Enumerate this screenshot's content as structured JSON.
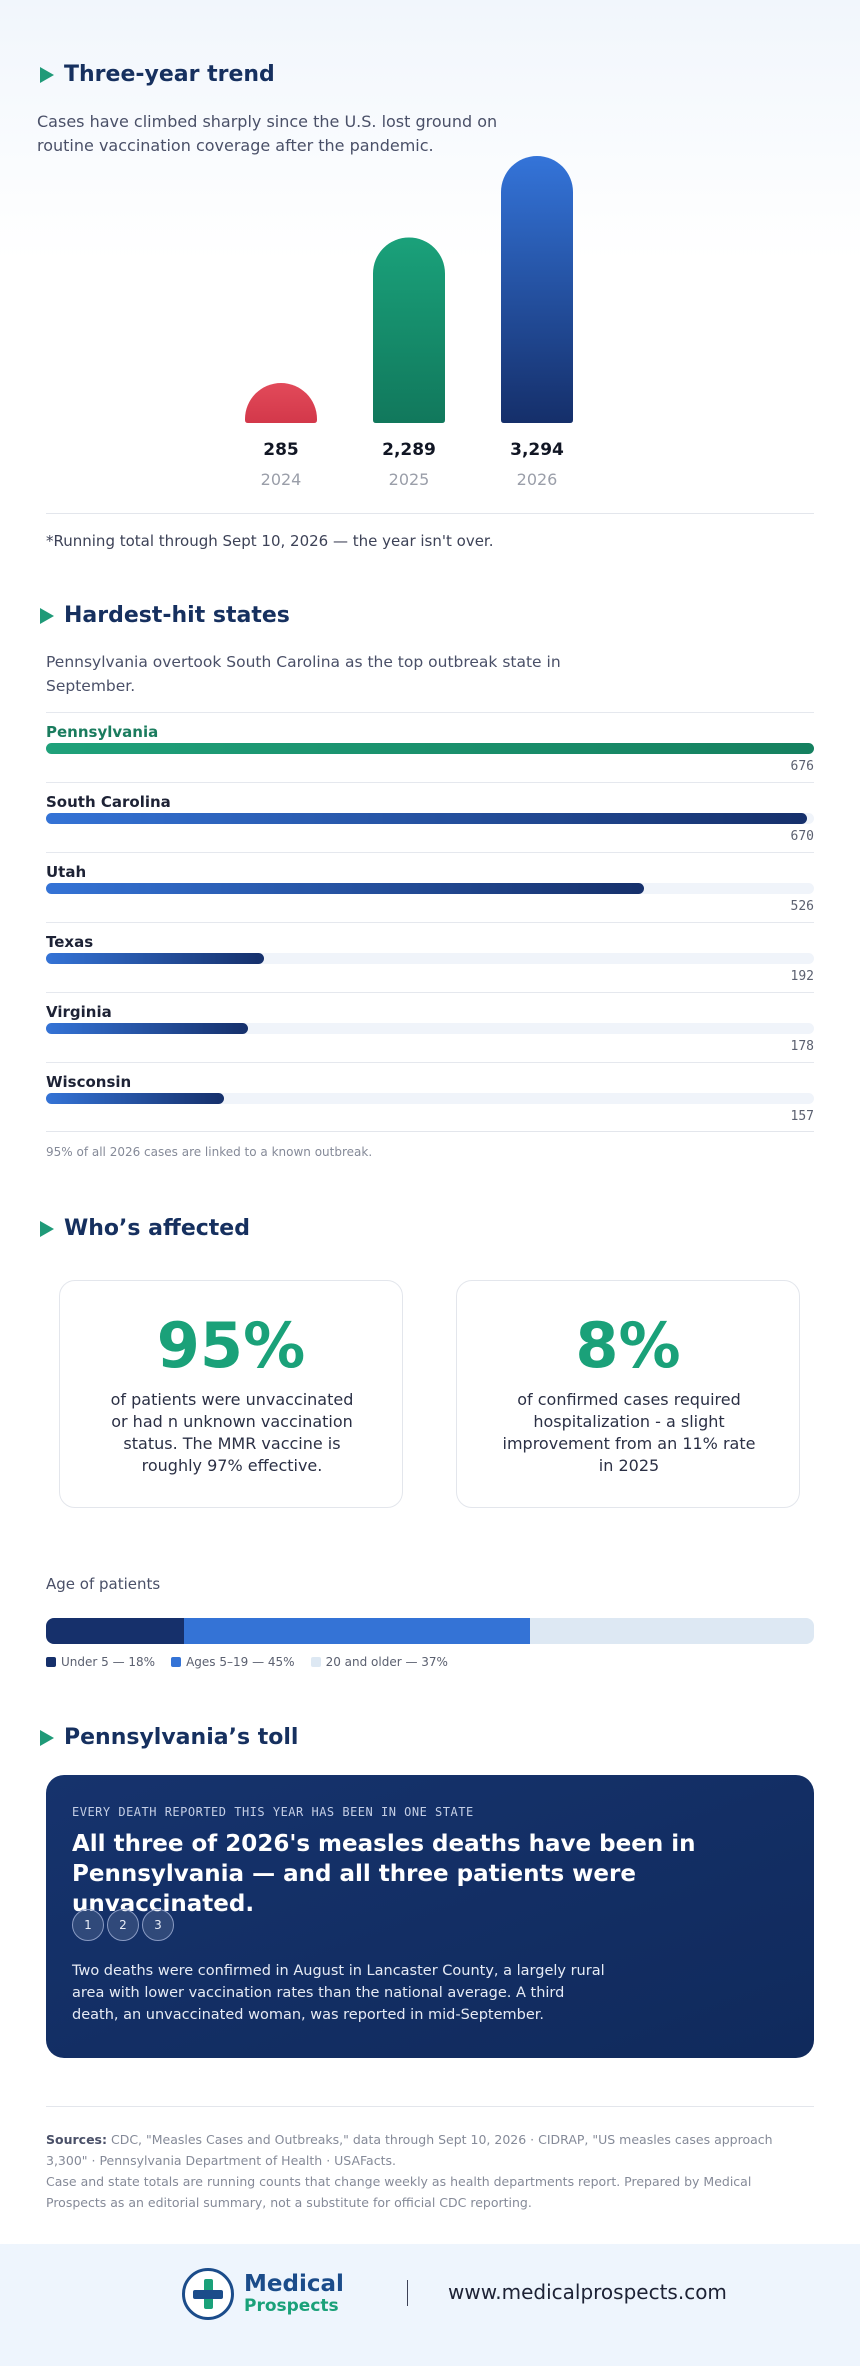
{
  "trend": {
    "heading": "Three-year trend",
    "lede": "Cases have climbed sharply since the U.S. lost ground on routine vaccination coverage after the pandemic.",
    "note": "*Running total through Sept 10, 2026 — the year isn't over."
  },
  "chart_data": {
    "type": "bar",
    "title": "",
    "categories": [
      "2024",
      "2025",
      "2026"
    ],
    "values": [
      285,
      2289,
      3294
    ],
    "value_labels": [
      "285",
      "2,289",
      "3,294"
    ],
    "colors": [
      "#e04656",
      "#16956f",
      "#2c65cf"
    ],
    "xlabel": "",
    "ylabel": "",
    "ylim": [
      0,
      3294
    ],
    "grid": false
  },
  "states": {
    "heading": "Hardest-hit states",
    "lede": "Pennsylvania overtook South Carolina as the top outbreak state in September.",
    "max": 676,
    "rows": [
      {
        "name": "Pennsylvania",
        "value": 676,
        "label": "676"
      },
      {
        "name": "South Carolina",
        "value": 670,
        "label": "670"
      },
      {
        "name": "Utah",
        "value": 526,
        "label": "526"
      },
      {
        "name": "Texas",
        "value": 192,
        "label": "192"
      },
      {
        "name": "Virginia",
        "value": 178,
        "label": "178"
      },
      {
        "name": "Wisconsin",
        "value": 157,
        "label": "157"
      }
    ],
    "footnote": "95% of all 2026 cases are linked to a known outbreak."
  },
  "affected": {
    "heading": "Who’s affected",
    "card1": {
      "big": "95%",
      "text": "of patients were unvaccinated or had n unknown vaccination status. The MMR vaccine is roughly 97% effective."
    },
    "card2": {
      "big": "8%",
      "text": "of confirmed cases required hospitalization - a slight improvement from an 11% rate in 2025"
    },
    "age_label": "Age of patients",
    "age_groups": [
      {
        "label": "Under 5 — 18%",
        "percent": 18,
        "color": "#16306b"
      },
      {
        "label": "Ages 5–19 — 45%",
        "percent": 45,
        "color": "#3473d6"
      },
      {
        "label": "20 and older — 37%",
        "percent": 37,
        "color": "#dde8f3"
      }
    ]
  },
  "toll": {
    "heading": "Pennsylvania’s toll",
    "kicker": "EVERY DEATH REPORTED THIS YEAR HAS BEEN IN ONE STATE",
    "headline": "All three of 2026's measles deaths have been in Pennsylvania — and all three patients were unvaccinated.",
    "circles": [
      "1",
      "2",
      "3"
    ],
    "body": "Two deaths were confirmed in August in Lancaster County, a largely rural area with lower vaccination rates than the national average. A third death, an unvaccinated woman, was reported in mid-September."
  },
  "sources": {
    "label": "Sources:",
    "text": "CDC, \"Measles Cases and Outbreaks,\" data through Sept 10, 2026 · CIDRAP, \"US measles cases approach 3,300\" · Pennsylvania Department of Health · USAFacts.",
    "note": "Case and state totals are running counts that change weekly as health departments report. Prepared by Medical Prospects as an editorial summary, not a substitute for official CDC reporting."
  },
  "footer": {
    "brand_line1": "Medical",
    "brand_line2": "Prospects",
    "url": "www.medicalprospects.com"
  }
}
